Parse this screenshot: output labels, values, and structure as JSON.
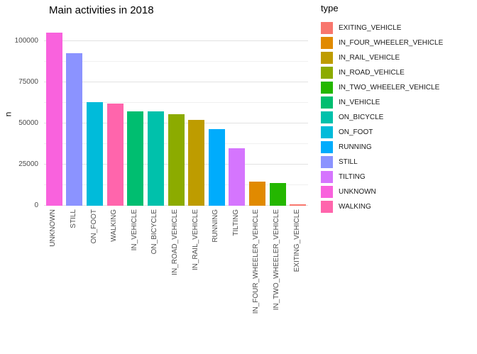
{
  "chart_data": {
    "type": "bar",
    "title": "Main activities in 2018",
    "xlabel": "",
    "ylabel": "n",
    "legend_title": "type",
    "legend_position": "right",
    "grid": true,
    "ylim": [
      0,
      100000
    ],
    "yticks": [
      0,
      25000,
      50000,
      75000,
      100000
    ],
    "categories": [
      "UNKNOWN",
      "STILL",
      "ON_FOOT",
      "WALKING",
      "IN_VEHICLE",
      "ON_BICYCLE",
      "IN_ROAD_VEHICLE",
      "IN_RAIL_VEHICLE",
      "RUNNING",
      "TILTING",
      "IN_FOUR_WHEELER_VEHICLE",
      "IN_TWO_WHEELER_VEHICLE",
      "EXITING_VEHICLE"
    ],
    "values": [
      105000,
      92500,
      63000,
      62000,
      57500,
      57500,
      55500,
      52000,
      46500,
      35000,
      14500,
      14000,
      700
    ],
    "colors": {
      "EXITING_VEHICLE": "#F8766D",
      "IN_FOUR_WHEELER_VEHICLE": "#E18A00",
      "IN_RAIL_VEHICLE": "#BE9C00",
      "IN_ROAD_VEHICLE": "#8CAB00",
      "IN_TWO_WHEELER_VEHICLE": "#24B700",
      "IN_VEHICLE": "#00BE70",
      "ON_BICYCLE": "#00C1AB",
      "ON_FOOT": "#00BBDA",
      "RUNNING": "#00ACFC",
      "STILL": "#8B93FF",
      "TILTING": "#D575FE",
      "UNKNOWN": "#F962DD",
      "WALKING": "#FF65AC"
    },
    "legend_items": [
      "EXITING_VEHICLE",
      "IN_FOUR_WHEELER_VEHICLE",
      "IN_RAIL_VEHICLE",
      "IN_ROAD_VEHICLE",
      "IN_TWO_WHEELER_VEHICLE",
      "IN_VEHICLE",
      "ON_BICYCLE",
      "ON_FOOT",
      "RUNNING",
      "STILL",
      "TILTING",
      "UNKNOWN",
      "WALKING"
    ]
  }
}
